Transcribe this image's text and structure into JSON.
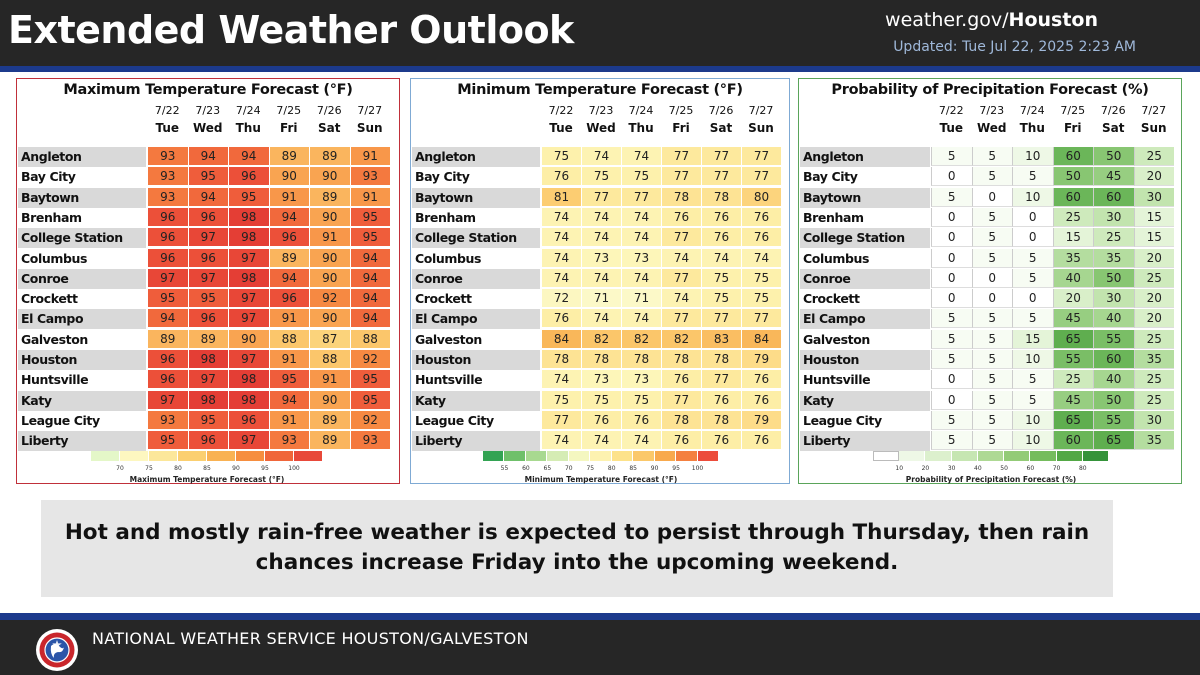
{
  "header": {
    "title": "Extended Weather Outlook",
    "site_prefix": "weather.gov/",
    "site_office": "Houston",
    "updated": "Updated: Tue Jul 22, 2025 2:23 AM"
  },
  "summary": {
    "line1": "Hot and mostly rain-free weather is expected to persist through Thursday, then rain",
    "line2": "chances increase Friday into the upcoming weekend."
  },
  "footer": {
    "text": "NATIONAL WEATHER SERVICE HOUSTON/GALVESTON"
  },
  "colors": {
    "header_bg": "#262626",
    "accent_bar": "#1c3a8c",
    "summary_bg": "#e6e6e6",
    "updated_text": "#9fb8d9"
  },
  "chart_data": [
    {
      "type": "table",
      "title": "Maximum Temperature Forecast (°F)",
      "dates": [
        "7/22",
        "7/23",
        "7/24",
        "7/25",
        "7/26",
        "7/27"
      ],
      "days": [
        "Tue",
        "Wed",
        "Thu",
        "Fri",
        "Sat",
        "Sun"
      ],
      "cities": [
        "Angleton",
        "Bay City",
        "Baytown",
        "Brenham",
        "College Station",
        "Columbus",
        "Conroe",
        "Crockett",
        "El Campo",
        "Galveston",
        "Houston",
        "Huntsville",
        "Katy",
        "League City",
        "Liberty"
      ],
      "values": [
        [
          93,
          94,
          94,
          89,
          89,
          91
        ],
        [
          93,
          95,
          96,
          90,
          90,
          93
        ],
        [
          93,
          94,
          95,
          91,
          89,
          91
        ],
        [
          96,
          96,
          98,
          94,
          90,
          95
        ],
        [
          96,
          97,
          98,
          96,
          91,
          95
        ],
        [
          96,
          96,
          97,
          89,
          90,
          94
        ],
        [
          97,
          97,
          98,
          94,
          90,
          94
        ],
        [
          95,
          95,
          97,
          96,
          92,
          94
        ],
        [
          94,
          96,
          97,
          91,
          90,
          94
        ],
        [
          89,
          89,
          90,
          88,
          87,
          88
        ],
        [
          96,
          98,
          97,
          91,
          88,
          92
        ],
        [
          96,
          97,
          98,
          95,
          91,
          95
        ],
        [
          97,
          98,
          98,
          94,
          90,
          95
        ],
        [
          93,
          95,
          96,
          91,
          89,
          92
        ],
        [
          95,
          96,
          97,
          93,
          89,
          93
        ]
      ],
      "legend_title": "Maximum Temperature Forecast (°F)",
      "legend_ticks": [
        "70",
        "75",
        "80",
        "85",
        "90",
        "95",
        "100"
      ],
      "legend_colors": [
        "#e4f7c8",
        "#fdf7c0",
        "#fce79a",
        "#fbcf70",
        "#f9b253",
        "#f68e3f",
        "#f0663a",
        "#e8493a"
      ],
      "border_color": "#c0303a"
    },
    {
      "type": "table",
      "title": "Minimum Temperature Forecast (°F)",
      "dates": [
        "7/22",
        "7/23",
        "7/24",
        "7/25",
        "7/26",
        "7/27"
      ],
      "days": [
        "Tue",
        "Wed",
        "Thu",
        "Fri",
        "Sat",
        "Sun"
      ],
      "cities": [
        "Angleton",
        "Bay City",
        "Baytown",
        "Brenham",
        "College Station",
        "Columbus",
        "Conroe",
        "Crockett",
        "El Campo",
        "Galveston",
        "Houston",
        "Huntsville",
        "Katy",
        "League City",
        "Liberty"
      ],
      "values": [
        [
          75,
          74,
          74,
          77,
          77,
          77
        ],
        [
          76,
          75,
          75,
          77,
          77,
          77
        ],
        [
          81,
          77,
          77,
          78,
          78,
          80
        ],
        [
          74,
          74,
          74,
          76,
          76,
          76
        ],
        [
          74,
          74,
          74,
          77,
          76,
          76
        ],
        [
          74,
          73,
          73,
          74,
          74,
          74
        ],
        [
          74,
          74,
          74,
          77,
          75,
          75
        ],
        [
          72,
          71,
          71,
          74,
          75,
          75
        ],
        [
          76,
          74,
          74,
          77,
          77,
          77
        ],
        [
          84,
          82,
          82,
          82,
          83,
          84
        ],
        [
          78,
          78,
          78,
          78,
          78,
          79
        ],
        [
          74,
          73,
          73,
          76,
          77,
          76
        ],
        [
          75,
          75,
          75,
          77,
          76,
          76
        ],
        [
          77,
          76,
          76,
          78,
          78,
          79
        ],
        [
          74,
          74,
          74,
          76,
          76,
          76
        ]
      ],
      "legend_title": "Minimum Temperature Forecast (°F)",
      "legend_ticks": [
        "55",
        "60",
        "65",
        "70",
        "75",
        "80",
        "85",
        "90",
        "95",
        "100"
      ],
      "legend_colors": [
        "#33a353",
        "#6fc06a",
        "#a8d990",
        "#d5ecb4",
        "#f4f7c0",
        "#fdf2b0",
        "#fde28a",
        "#fbc86a",
        "#f8a94d",
        "#f48040",
        "#ec4c3b"
      ],
      "border_color": "#7faad4"
    },
    {
      "type": "table",
      "title": "Probability of Precipitation Forecast (%)",
      "dates": [
        "7/22",
        "7/23",
        "7/24",
        "7/25",
        "7/26",
        "7/27"
      ],
      "days": [
        "Tue",
        "Wed",
        "Thu",
        "Fri",
        "Sat",
        "Sun"
      ],
      "cities": [
        "Angleton",
        "Bay City",
        "Baytown",
        "Brenham",
        "College Station",
        "Columbus",
        "Conroe",
        "Crockett",
        "El Campo",
        "Galveston",
        "Houston",
        "Huntsville",
        "Katy",
        "League City",
        "Liberty"
      ],
      "values": [
        [
          5,
          5,
          10,
          60,
          50,
          25
        ],
        [
          0,
          5,
          5,
          50,
          45,
          20
        ],
        [
          5,
          0,
          10,
          60,
          60,
          30
        ],
        [
          0,
          5,
          0,
          25,
          30,
          15
        ],
        [
          0,
          5,
          0,
          15,
          25,
          15
        ],
        [
          0,
          5,
          5,
          35,
          35,
          20
        ],
        [
          0,
          0,
          5,
          40,
          50,
          25
        ],
        [
          0,
          0,
          0,
          20,
          30,
          20
        ],
        [
          5,
          5,
          5,
          45,
          40,
          20
        ],
        [
          5,
          5,
          15,
          65,
          55,
          25
        ],
        [
          5,
          5,
          10,
          55,
          60,
          35
        ],
        [
          0,
          5,
          5,
          25,
          40,
          25
        ],
        [
          0,
          5,
          5,
          45,
          50,
          25
        ],
        [
          5,
          5,
          10,
          65,
          55,
          30
        ],
        [
          5,
          5,
          10,
          60,
          65,
          35
        ]
      ],
      "legend_title": "Probability of Precipitation Forecast (%)",
      "legend_ticks": [
        "10",
        "20",
        "30",
        "40",
        "50",
        "60",
        "70",
        "80"
      ],
      "legend_colors": [
        "#ffffff",
        "#eef8e6",
        "#dcf0cd",
        "#c6e6b2",
        "#aed994",
        "#93cb77",
        "#75bc5d",
        "#53a845",
        "#35933a"
      ],
      "border_color": "#5aa45a"
    }
  ]
}
